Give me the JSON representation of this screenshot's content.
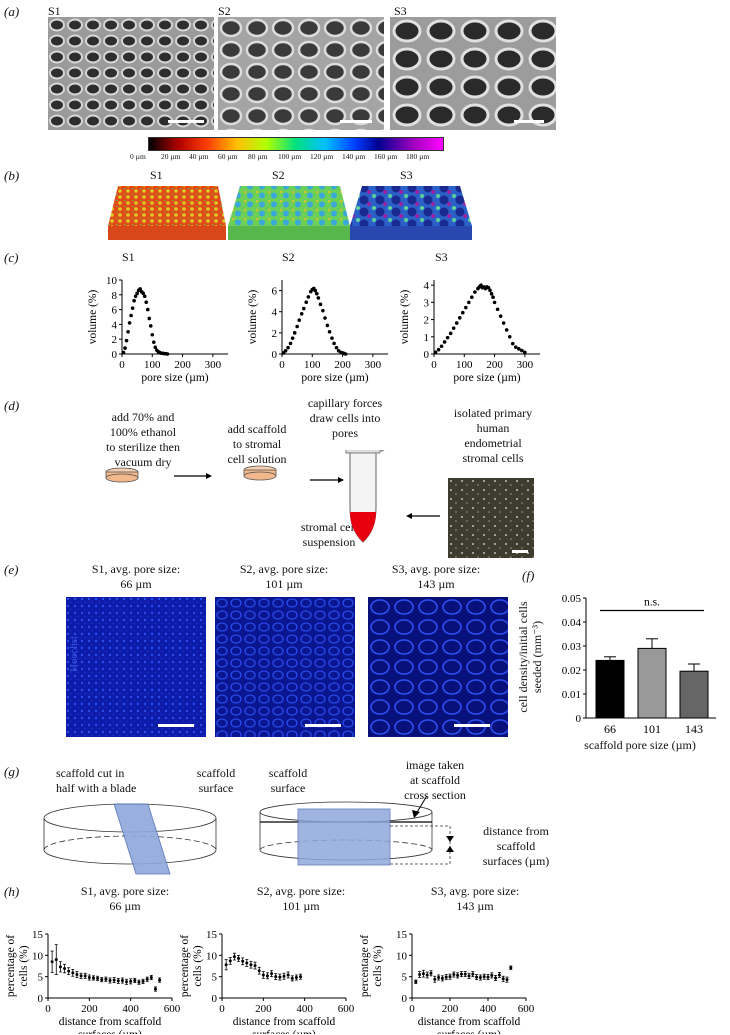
{
  "panels": {
    "a": {
      "label": "(a)",
      "samples": [
        "S1",
        "S2",
        "S3"
      ]
    },
    "colorbar": {
      "ticks": [
        "0 µm",
        "20 µm",
        "40 µm",
        "60 µm",
        "80 µm",
        "100 µm",
        "120 µm",
        "140 µm",
        "160 µm",
        "180 µm"
      ]
    },
    "b": {
      "label": "(b)",
      "samples": [
        "S1",
        "S2",
        "S3"
      ]
    },
    "c": {
      "label": "(c)",
      "samples": [
        "S1",
        "S2",
        "S3"
      ],
      "xlabel": "pore size (µm)",
      "ylabel": "volume (%)"
    },
    "d": {
      "label": "(d)",
      "step1": [
        "add 70% and",
        "100% ethanol",
        "to sterilize then",
        "vacuum dry"
      ],
      "step2": [
        "add scaffold",
        "to stromal",
        "cell solution"
      ],
      "step3": [
        "capillary forces",
        "draw cells into",
        "pores"
      ],
      "tube_label": [
        "stromal cell",
        "suspension"
      ],
      "cells_label": [
        "isolated primary",
        "human",
        "endometrial",
        "stromal cells"
      ]
    },
    "e": {
      "label": "(e)",
      "titles": [
        [
          "S1, avg. pore size:",
          "66 µm"
        ],
        [
          "S2, avg. pore size:",
          "101 µm"
        ],
        [
          "S3, avg. pore size:",
          "143 µm"
        ]
      ],
      "stain": "Hoechst"
    },
    "f": {
      "label": "(f)",
      "ylabel": [
        "cell density/initial cells",
        "seeded (mm⁻³)"
      ],
      "xlabel": "scaffold pore size (µm)",
      "sig": "n.s."
    },
    "g": {
      "label": "(g)",
      "left": [
        "scaffold cut in",
        "half with a blade"
      ],
      "surface1": [
        "scaffold",
        "surface"
      ],
      "surface2": [
        "scaffold",
        "surface"
      ],
      "image_taken": [
        "image taken",
        "at scaffold",
        "cross section"
      ],
      "distance": [
        "distance from",
        "scaffold",
        "surfaces (µm)"
      ]
    },
    "h": {
      "label": "(h)",
      "titles": [
        [
          "S1, avg. pore size:",
          "66 µm"
        ],
        [
          "S2, avg. pore size:",
          "101 µm"
        ],
        [
          "S3, avg. pore size:",
          "143 µm"
        ]
      ],
      "ylabel": [
        "percentage of",
        "cells (%)"
      ],
      "xlabel": [
        "distance from scaffold",
        "surfaces (µm)"
      ]
    }
  },
  "chart_data": [
    {
      "type": "scatter",
      "title": "S1",
      "xlabel": "pore size (µm)",
      "ylabel": "volume (%)",
      "xlim": [
        0,
        350
      ],
      "ylim": [
        0,
        10
      ],
      "xticks": [
        0,
        100,
        200,
        300
      ],
      "yticks": [
        0,
        2,
        4,
        6,
        8,
        10
      ],
      "x": [
        5,
        10,
        15,
        20,
        25,
        30,
        35,
        40,
        45,
        50,
        55,
        60,
        65,
        70,
        75,
        80,
        85,
        90,
        95,
        100,
        105,
        110,
        115,
        120,
        125,
        130,
        135,
        140,
        145,
        150
      ],
      "y": [
        0.2,
        0.8,
        1.8,
        3.0,
        4.2,
        5.2,
        6.2,
        7.2,
        7.8,
        8.2,
        8.6,
        8.8,
        8.4,
        8.2,
        7.8,
        7.0,
        6.0,
        4.8,
        3.8,
        2.6,
        1.6,
        0.9,
        0.5,
        0.3,
        0.2,
        0.1,
        0.1,
        0.05,
        0.05,
        0.0
      ]
    },
    {
      "type": "scatter",
      "title": "S2",
      "xlabel": "pore size (µm)",
      "ylabel": "volume (%)",
      "xlim": [
        0,
        350
      ],
      "ylim": [
        0,
        7
      ],
      "xticks": [
        0,
        100,
        200,
        300
      ],
      "yticks": [
        0,
        2,
        4,
        6
      ],
      "x": [
        5,
        12,
        20,
        28,
        35,
        42,
        50,
        57,
        65,
        72,
        80,
        87,
        95,
        100,
        105,
        110,
        115,
        120,
        127,
        135,
        142,
        150,
        157,
        165,
        172,
        180,
        187,
        195,
        200,
        205,
        210
      ],
      "y": [
        0.1,
        0.3,
        0.6,
        1.0,
        1.5,
        2.0,
        2.6,
        3.2,
        3.8,
        4.3,
        4.9,
        5.4,
        5.9,
        6.1,
        6.2,
        6.0,
        5.7,
        5.3,
        4.7,
        4.1,
        3.4,
        2.7,
        2.1,
        1.5,
        1.0,
        0.6,
        0.3,
        0.15,
        0.1,
        0.05,
        0.0
      ]
    },
    {
      "type": "scatter",
      "title": "S3",
      "xlabel": "pore size (µm)",
      "ylabel": "volume (%)",
      "xlim": [
        0,
        350
      ],
      "ylim": [
        0,
        4.3
      ],
      "xticks": [
        0,
        100,
        200,
        300
      ],
      "yticks": [
        0,
        1,
        2,
        3,
        4
      ],
      "x": [
        5,
        15,
        25,
        35,
        45,
        55,
        65,
        75,
        85,
        95,
        105,
        115,
        125,
        135,
        145,
        150,
        155,
        160,
        165,
        170,
        175,
        180,
        185,
        190,
        195,
        200,
        210,
        220,
        230,
        240,
        250,
        260,
        270,
        280,
        290,
        300
      ],
      "y": [
        0.1,
        0.25,
        0.45,
        0.7,
        0.95,
        1.2,
        1.5,
        1.8,
        2.1,
        2.4,
        2.7,
        3.0,
        3.3,
        3.6,
        3.8,
        3.9,
        4.0,
        3.85,
        3.9,
        3.8,
        3.9,
        3.85,
        3.7,
        3.5,
        3.3,
        3.0,
        2.6,
        2.2,
        1.8,
        1.4,
        1.0,
        0.6,
        0.4,
        0.3,
        0.2,
        0.1
      ]
    },
    {
      "type": "bar",
      "xlabel": "scaffold pore size (µm)",
      "ylabel": "cell density/initial cells seeded (mm⁻³)",
      "categories": [
        "66",
        "101",
        "143"
      ],
      "values": [
        0.024,
        0.029,
        0.0195
      ],
      "errors": [
        0.0015,
        0.004,
        0.003
      ],
      "colors": [
        "#000000",
        "#999999",
        "#666666"
      ],
      "ylim": [
        0,
        0.05
      ],
      "yticks": [
        "0",
        "0.01",
        "0.02",
        "0.03",
        "0.04",
        "0.05"
      ]
    },
    {
      "type": "scatter",
      "title": "S1, avg. pore size: 66 µm",
      "xlabel": "distance from scaffold surfaces (µm)",
      "ylabel": "percentage of cells (%)",
      "xlim": [
        0,
        600
      ],
      "ylim": [
        0,
        15
      ],
      "xticks": [
        0,
        200,
        400,
        600
      ],
      "yticks": [
        0,
        5,
        10,
        15
      ],
      "x": [
        20,
        40,
        60,
        80,
        100,
        120,
        140,
        160,
        180,
        200,
        220,
        240,
        260,
        280,
        300,
        320,
        340,
        360,
        380,
        400,
        420,
        440,
        460,
        480,
        500,
        520,
        540
      ],
      "y": [
        8.5,
        9.0,
        7.3,
        6.9,
        6.3,
        5.9,
        5.5,
        5.2,
        5.2,
        4.8,
        4.7,
        4.6,
        4.3,
        4.4,
        4.1,
        4.2,
        4.0,
        4.1,
        3.8,
        3.9,
        4.1,
        3.7,
        3.9,
        4.4,
        4.8,
        2.1,
        4.2
      ],
      "err": [
        2.5,
        3.5,
        1.2,
        1.0,
        0.8,
        0.8,
        0.7,
        0.6,
        0.6,
        0.6,
        0.5,
        0.5,
        0.5,
        0.5,
        0.6,
        0.6,
        0.6,
        0.6,
        0.6,
        0.6,
        0.5,
        0.5,
        0.5,
        0.5,
        0.5,
        0.5,
        0.5
      ]
    },
    {
      "type": "scatter",
      "title": "S2, avg. pore size: 101 µm",
      "xlabel": "distance from scaffold surfaces (µm)",
      "ylabel": "percentage of cells (%)",
      "xlim": [
        0,
        600
      ],
      "ylim": [
        0,
        15
      ],
      "xticks": [
        0,
        200,
        400,
        600
      ],
      "yticks": [
        0,
        5,
        10,
        15
      ],
      "x": [
        20,
        40,
        60,
        80,
        100,
        120,
        140,
        160,
        180,
        200,
        220,
        240,
        260,
        280,
        300,
        320,
        340,
        360,
        380
      ],
      "y": [
        7.8,
        8.7,
        9.7,
        9.3,
        8.6,
        8.2,
        7.8,
        7.6,
        6.4,
        5.4,
        5.2,
        5.7,
        5.0,
        4.9,
        5.1,
        5.4,
        4.6,
        4.8,
        5.0
      ],
      "err": [
        1.2,
        0.8,
        0.8,
        0.7,
        0.8,
        0.8,
        0.8,
        0.8,
        0.8,
        0.8,
        0.7,
        0.7,
        0.7,
        0.7,
        0.7,
        0.7,
        0.6,
        0.6,
        0.6
      ]
    },
    {
      "type": "scatter",
      "title": "S3, avg. pore size: 143 µm",
      "xlabel": "distance from scaffold surfaces (µm)",
      "ylabel": "percentage of cells (%)",
      "xlim": [
        0,
        600
      ],
      "ylim": [
        0,
        15
      ],
      "xticks": [
        0,
        200,
        400,
        600
      ],
      "yticks": [
        0,
        5,
        10,
        15
      ],
      "x": [
        20,
        40,
        60,
        80,
        100,
        120,
        140,
        160,
        180,
        200,
        220,
        240,
        260,
        280,
        300,
        320,
        340,
        360,
        380,
        400,
        420,
        440,
        460,
        480,
        500,
        520
      ],
      "y": [
        3.8,
        5.5,
        5.7,
        5.4,
        5.8,
        4.4,
        4.8,
        4.6,
        4.9,
        5.0,
        5.5,
        5.3,
        5.6,
        5.6,
        5.2,
        5.6,
        4.9,
        4.8,
        5.0,
        4.9,
        5.3,
        4.7,
        5.4,
        4.5,
        4.3,
        7.1
      ],
      "err": [
        0.4,
        0.7,
        0.8,
        0.7,
        0.6,
        0.7,
        0.6,
        0.6,
        0.6,
        0.6,
        0.6,
        0.6,
        0.6,
        0.6,
        0.6,
        0.6,
        0.6,
        0.6,
        0.6,
        0.6,
        0.6,
        0.6,
        0.6,
        0.6,
        0.6,
        0.4
      ]
    }
  ]
}
